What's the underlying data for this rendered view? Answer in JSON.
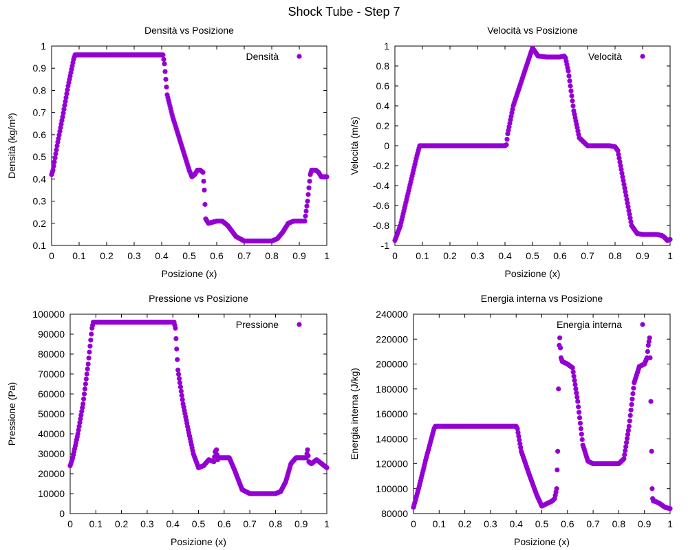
{
  "figure_title": "Shock Tube - Step 7",
  "marker_color": "#9400d3",
  "chart_data": [
    {
      "type": "scatter",
      "title": "Densità vs Posizione",
      "xlabel": "Posizione (x)",
      "ylabel": "Densità (kg/m³)",
      "legend": "Densità",
      "legend_position": "top-right",
      "grid": false,
      "xlim": [
        0,
        1
      ],
      "ylim": [
        0.1,
        1
      ],
      "xticks": [
        "0",
        "0.1",
        "0.2",
        "0.3",
        "0.4",
        "0.5",
        "0.6",
        "0.7",
        "0.8",
        "0.9",
        "1"
      ],
      "yticks": [
        "0.1",
        "0.2",
        "0.3",
        "0.4",
        "0.5",
        "0.6",
        "0.7",
        "0.8",
        "0.9",
        "1"
      ],
      "x": [
        0,
        0.005,
        0.02,
        0.04,
        0.06,
        0.08,
        0.085,
        0.09,
        0.1,
        0.2,
        0.3,
        0.38,
        0.405,
        0.41,
        0.42,
        0.44,
        0.46,
        0.48,
        0.5,
        0.51,
        0.52,
        0.53,
        0.54,
        0.55,
        0.555,
        0.56,
        0.57,
        0.6,
        0.62,
        0.64,
        0.67,
        0.7,
        0.75,
        0.8,
        0.82,
        0.84,
        0.86,
        0.88,
        0.9,
        0.92,
        0.93,
        0.94,
        0.945,
        0.95,
        0.96,
        0.97,
        0.98,
        1.0
      ],
      "y": [
        0.42,
        0.44,
        0.55,
        0.68,
        0.82,
        0.94,
        0.96,
        0.96,
        0.96,
        0.96,
        0.96,
        0.96,
        0.96,
        0.92,
        0.78,
        0.68,
        0.6,
        0.52,
        0.44,
        0.41,
        0.42,
        0.44,
        0.44,
        0.43,
        0.35,
        0.22,
        0.2,
        0.21,
        0.21,
        0.19,
        0.14,
        0.12,
        0.12,
        0.12,
        0.13,
        0.16,
        0.2,
        0.21,
        0.21,
        0.21,
        0.3,
        0.42,
        0.44,
        0.44,
        0.44,
        0.43,
        0.41,
        0.41
      ]
    },
    {
      "type": "scatter",
      "title": "Velocità vs Posizione",
      "xlabel": "Posizione (x)",
      "ylabel": "Velocità (m/s)",
      "legend": "Velocità",
      "legend_position": "top-right",
      "grid": false,
      "xlim": [
        0,
        1
      ],
      "ylim": [
        -1,
        1
      ],
      "xticks": [
        "0",
        "0.1",
        "0.2",
        "0.3",
        "0.4",
        "0.5",
        "0.6",
        "0.7",
        "0.8",
        "0.9",
        "1"
      ],
      "yticks": [
        "-1",
        "-0.8",
        "-0.6",
        "-0.4",
        "-0.2",
        "0",
        "0.2",
        "0.4",
        "0.6",
        "0.8",
        "1"
      ],
      "x": [
        0,
        0.02,
        0.05,
        0.08,
        0.09,
        0.1,
        0.2,
        0.3,
        0.4,
        0.405,
        0.41,
        0.43,
        0.46,
        0.49,
        0.5,
        0.51,
        0.52,
        0.55,
        0.6,
        0.615,
        0.62,
        0.63,
        0.65,
        0.67,
        0.7,
        0.75,
        0.78,
        0.8,
        0.81,
        0.82,
        0.84,
        0.86,
        0.88,
        0.9,
        0.95,
        0.97,
        0.98,
        0.99,
        1.0
      ],
      "y": [
        -0.95,
        -0.8,
        -0.45,
        -0.1,
        0,
        0,
        0,
        0,
        0,
        0.01,
        0.12,
        0.4,
        0.65,
        0.9,
        0.98,
        0.94,
        0.9,
        0.89,
        0.89,
        0.9,
        0.88,
        0.75,
        0.35,
        0.08,
        0,
        0,
        0,
        -0.01,
        -0.05,
        -0.2,
        -0.5,
        -0.8,
        -0.88,
        -0.89,
        -0.89,
        -0.9,
        -0.92,
        -0.95,
        -0.94
      ]
    },
    {
      "type": "scatter",
      "title": "Pressione vs Posizione",
      "xlabel": "Posizione (x)",
      "ylabel": "Pressione (Pa)",
      "legend": "Pressione",
      "legend_position": "top-right",
      "grid": false,
      "xlim": [
        0,
        1
      ],
      "ylim": [
        0,
        100000
      ],
      "xticks": [
        "0",
        "0.1",
        "0.2",
        "0.3",
        "0.4",
        "0.5",
        "0.6",
        "0.7",
        "0.8",
        "0.9",
        "1"
      ],
      "yticks": [
        "0",
        "10000",
        "20000",
        "30000",
        "40000",
        "50000",
        "60000",
        "70000",
        "80000",
        "90000",
        "100000"
      ],
      "x": [
        0,
        0.01,
        0.03,
        0.05,
        0.07,
        0.085,
        0.09,
        0.1,
        0.2,
        0.3,
        0.39,
        0.405,
        0.41,
        0.42,
        0.44,
        0.46,
        0.48,
        0.5,
        0.52,
        0.54,
        0.56,
        0.565,
        0.57,
        0.575,
        0.58,
        0.6,
        0.62,
        0.64,
        0.67,
        0.7,
        0.75,
        0.8,
        0.82,
        0.84,
        0.86,
        0.88,
        0.9,
        0.92,
        0.925,
        0.93,
        0.94,
        0.96,
        0.98,
        1.0
      ],
      "y": [
        24000,
        28000,
        40000,
        55000,
        75000,
        93000,
        96000,
        96000,
        96000,
        96000,
        96000,
        96000,
        93000,
        72000,
        55000,
        42000,
        30000,
        23000,
        24000,
        27000,
        26000,
        31000,
        32000,
        27000,
        28000,
        28000,
        28000,
        22000,
        12000,
        10000,
        10000,
        10000,
        11000,
        16000,
        25000,
        28000,
        28000,
        28000,
        32000,
        26000,
        25000,
        27000,
        25000,
        23000
      ]
    },
    {
      "type": "scatter",
      "title": "Energia interna vs Posizione",
      "xlabel": "Posizione (x)",
      "ylabel": "Energia interna (J/kg)",
      "legend": "Energia interna",
      "legend_position": "top-right",
      "grid": false,
      "xlim": [
        0,
        1
      ],
      "ylim": [
        80000,
        240000
      ],
      "xticks": [
        "0",
        "0.1",
        "0.2",
        "0.3",
        "0.4",
        "0.5",
        "0.6",
        "0.7",
        "0.8",
        "0.9",
        "1"
      ],
      "yticks": [
        "80000",
        "100000",
        "120000",
        "140000",
        "160000",
        "180000",
        "200000",
        "220000",
        "240000"
      ],
      "x": [
        0,
        0.02,
        0.05,
        0.08,
        0.085,
        0.1,
        0.2,
        0.3,
        0.4,
        0.405,
        0.42,
        0.45,
        0.48,
        0.5,
        0.52,
        0.54,
        0.55,
        0.558,
        0.562,
        0.565,
        0.568,
        0.57,
        0.575,
        0.58,
        0.6,
        0.62,
        0.64,
        0.66,
        0.68,
        0.7,
        0.75,
        0.8,
        0.82,
        0.84,
        0.86,
        0.88,
        0.9,
        0.91,
        0.915,
        0.92,
        0.922,
        0.925,
        0.928,
        0.93,
        0.932,
        0.935,
        0.94,
        0.96,
        0.98,
        1.0
      ],
      "y": [
        85000,
        100000,
        125000,
        148000,
        150000,
        150000,
        150000,
        150000,
        150000,
        148000,
        130000,
        112000,
        95000,
        86000,
        88000,
        90000,
        92000,
        100000,
        130000,
        180000,
        215000,
        221000,
        205000,
        202000,
        200000,
        197000,
        170000,
        135000,
        122000,
        120000,
        120000,
        120000,
        124000,
        150000,
        185000,
        198000,
        200000,
        205000,
        215000,
        221000,
        205000,
        170000,
        130000,
        100000,
        92000,
        90000,
        90000,
        88000,
        85000,
        84000
      ]
    }
  ]
}
